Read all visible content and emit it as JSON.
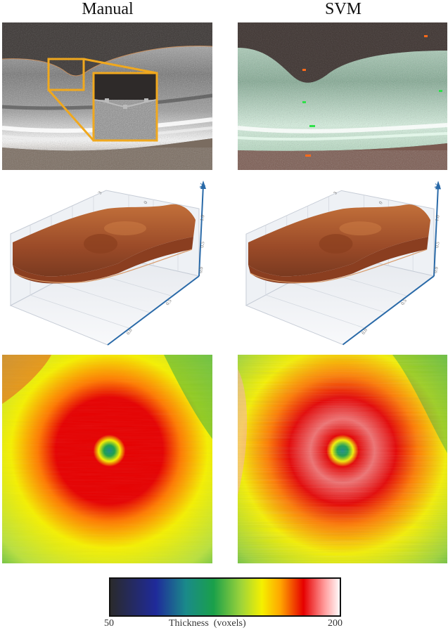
{
  "columns": {
    "left_title": "Manual",
    "right_title": "SVM"
  },
  "axis_labels": {
    "y": "Y",
    "ticks_top": [
      "3",
      "0"
    ],
    "ticks_side": [
      "1.0",
      "0.5",
      "0.0"
    ],
    "ticks_front": [
      "0.5",
      "0.0"
    ]
  },
  "colorbar": {
    "min": "50",
    "max": "200",
    "label": "Thickness  (voxels)",
    "stops": [
      "#2a2a2a",
      "#1f2a9a",
      "#1a8a8a",
      "#1aa04a",
      "#9ed43a",
      "#f5f000",
      "#ffa500",
      "#e60000",
      "#ff9a9a",
      "#ffffff"
    ]
  },
  "colors": {
    "zoom_box": "#f0a81e",
    "svm_overlay": "#7fd6a0",
    "svm_marks": "#ff6a1a",
    "surface": "#a0502a",
    "axis_blue": "#2a6aa8"
  }
}
